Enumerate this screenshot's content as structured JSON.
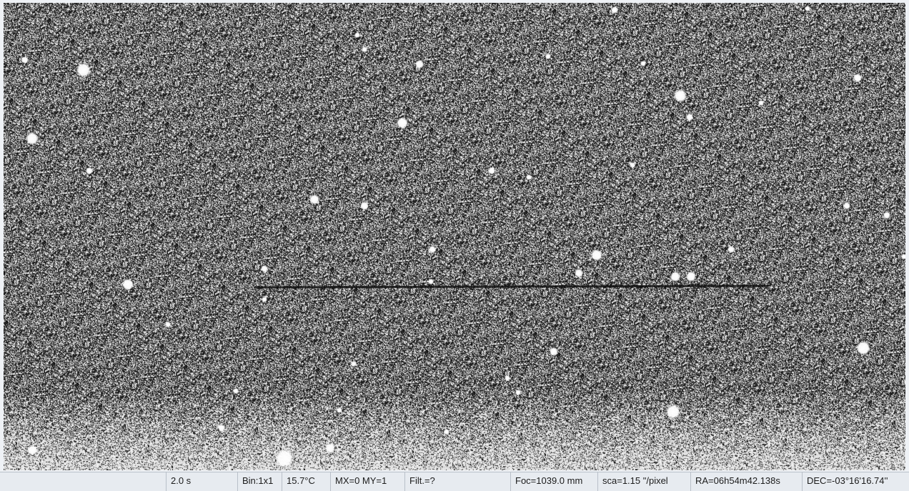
{
  "image_view": {
    "description_icon": "star-field-image"
  },
  "status_bar": {
    "empty": "",
    "exposure": "2.0 s",
    "binning": "Bin:1x1",
    "temperature": "15.7°C",
    "mount": "MX=0 MY=1",
    "filter": "Filt.=?",
    "focal": "Foc=1039.0 mm",
    "scale": "sca=1.15 \"/pixel",
    "ra": "RA=06h54m42.138s",
    "dec": "DEC=-03°16'16.74''"
  }
}
